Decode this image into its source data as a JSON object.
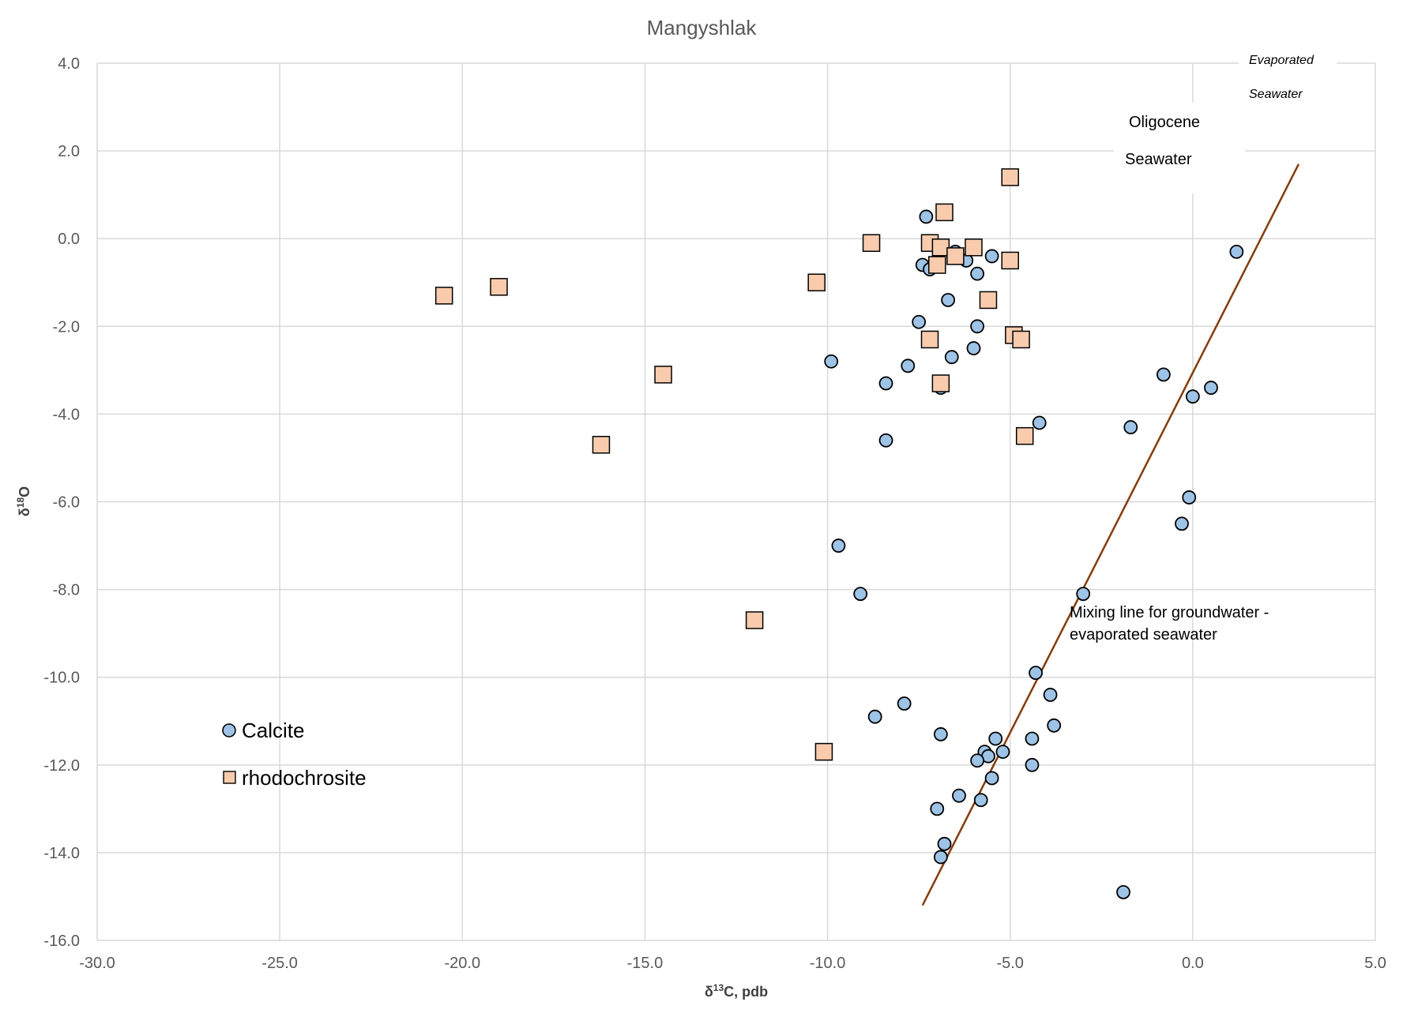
{
  "chart_data": {
    "type": "scatter",
    "title": "Mangyshlak",
    "xlabel": "δ13C, pdb",
    "ylabel": "δ18O",
    "xlim": [
      -30,
      5
    ],
    "ylim": [
      -16,
      4
    ],
    "x_ticks": [
      "-30.0",
      "-25.0",
      "-20.0",
      "-15.0",
      "-10.0",
      "-5.0",
      "0.0",
      "5.0"
    ],
    "y_ticks": [
      "4.0",
      "2.0",
      "0.0",
      "-2.0",
      "-4.0",
      "-6.0",
      "-8.0",
      "-10.0",
      "-12.0",
      "-14.0",
      "-16.0"
    ],
    "grid": true,
    "legend_position": "bottom-left",
    "series": [
      {
        "name": "Calcite",
        "marker": "circle",
        "color": "#9dc3e6",
        "points": [
          [
            -7.3,
            0.5
          ],
          [
            -7.4,
            -0.6
          ],
          [
            -7.2,
            -0.7
          ],
          [
            -6.5,
            -0.3
          ],
          [
            -6.2,
            -0.5
          ],
          [
            -5.5,
            -0.4
          ],
          [
            -5.9,
            -0.8
          ],
          [
            -6.7,
            -1.4
          ],
          [
            -7.5,
            -1.9
          ],
          [
            -5.9,
            -2.0
          ],
          [
            -6.0,
            -2.5
          ],
          [
            -6.6,
            -2.7
          ],
          [
            -7.8,
            -2.9
          ],
          [
            -9.9,
            -2.8
          ],
          [
            -8.4,
            -3.3
          ],
          [
            -6.9,
            -3.4
          ],
          [
            -8.4,
            -4.6
          ],
          [
            -4.2,
            -4.2
          ],
          [
            -1.7,
            -4.3
          ],
          [
            -0.8,
            -3.1
          ],
          [
            0.0,
            -3.6
          ],
          [
            0.5,
            -3.4
          ],
          [
            1.2,
            -0.3
          ],
          [
            -0.1,
            -5.9
          ],
          [
            -0.3,
            -6.5
          ],
          [
            -9.7,
            -7.0
          ],
          [
            -9.1,
            -8.1
          ],
          [
            -3.0,
            -8.1
          ],
          [
            -4.3,
            -9.9
          ],
          [
            -3.9,
            -10.4
          ],
          [
            -3.8,
            -11.1
          ],
          [
            -7.9,
            -10.6
          ],
          [
            -8.7,
            -10.9
          ],
          [
            -6.9,
            -11.3
          ],
          [
            -5.4,
            -11.4
          ],
          [
            -4.4,
            -11.4
          ],
          [
            -5.7,
            -11.7
          ],
          [
            -5.2,
            -11.7
          ],
          [
            -5.6,
            -11.8
          ],
          [
            -5.9,
            -11.9
          ],
          [
            -4.4,
            -12.0
          ],
          [
            -5.5,
            -12.3
          ],
          [
            -6.4,
            -12.7
          ],
          [
            -5.8,
            -12.8
          ],
          [
            -7.0,
            -13.0
          ],
          [
            -6.8,
            -13.8
          ],
          [
            -6.9,
            -14.1
          ],
          [
            -1.9,
            -14.9
          ]
        ]
      },
      {
        "name": "rhodochrosite",
        "marker": "square",
        "color": "#f8cbad",
        "points": [
          [
            -5.0,
            1.4
          ],
          [
            -6.8,
            0.6
          ],
          [
            -8.8,
            -0.1
          ],
          [
            -7.2,
            -0.1
          ],
          [
            -6.9,
            -0.2
          ],
          [
            -6.0,
            -0.2
          ],
          [
            -6.5,
            -0.4
          ],
          [
            -7.0,
            -0.6
          ],
          [
            -5.0,
            -0.5
          ],
          [
            -10.3,
            -1.0
          ],
          [
            -20.5,
            -1.3
          ],
          [
            -19.0,
            -1.1
          ],
          [
            -5.6,
            -1.4
          ],
          [
            -7.2,
            -2.3
          ],
          [
            -4.9,
            -2.2
          ],
          [
            -4.7,
            -2.3
          ],
          [
            -14.5,
            -3.1
          ],
          [
            -6.9,
            -3.3
          ],
          [
            -16.2,
            -4.7
          ],
          [
            -4.6,
            -4.5
          ],
          [
            -12.0,
            -8.7
          ],
          [
            -10.1,
            -11.7
          ]
        ]
      }
    ],
    "mixing_line": {
      "x": [
        -7.4,
        2.9
      ],
      "y": [
        -15.2,
        1.7
      ],
      "color": "#843c0c"
    },
    "reference_points": [
      {
        "name": "Oligocene Seawater",
        "x": 0.7,
        "y": 1.9
      },
      {
        "name": "Evaporated Seawater",
        "x": 3.5,
        "y": 3.4
      }
    ],
    "annotations": {
      "mixing_line_line1": "Mixing line for groundwater -",
      "mixing_line_line2": "evaporated seawater",
      "oligocene_line1": "Oligocene",
      "oligocene_line2": "Seawater",
      "evaporated_line1": "Evaporated",
      "evaporated_line2": "Seawater"
    }
  }
}
